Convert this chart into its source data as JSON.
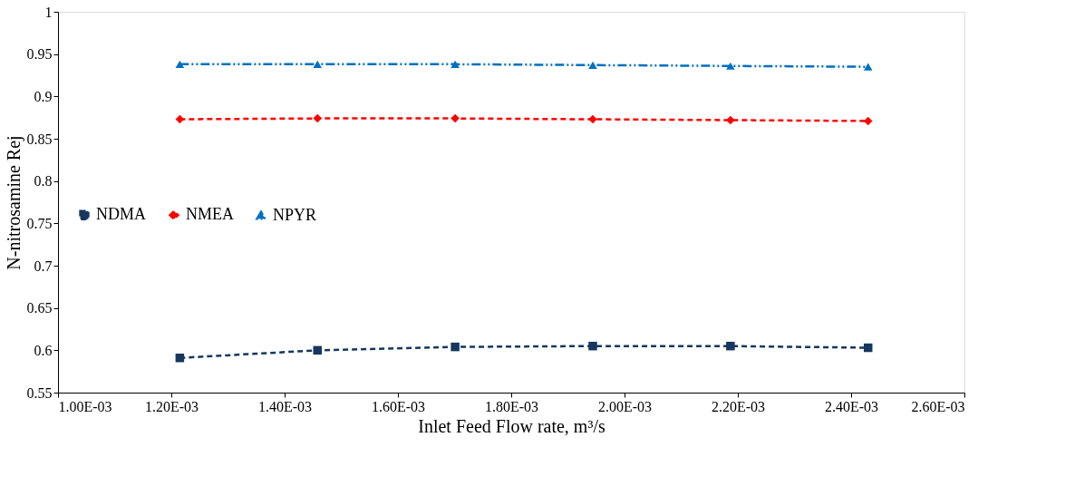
{
  "chart_data": {
    "type": "line",
    "xlabel": "Inlet Feed Flow rate, m³/s",
    "ylabel": "N-nitrosamine Rej",
    "x": [
      0.001215,
      0.001458,
      0.001701,
      0.001944,
      0.002187,
      0.00243
    ],
    "series": [
      {
        "name": "NDMA",
        "color": "#17375e",
        "marker": "square",
        "line_style": "dashed",
        "values": [
          0.591,
          0.6,
          0.604,
          0.605,
          0.605,
          0.603
        ]
      },
      {
        "name": "NMEA",
        "color": "#ff0000",
        "marker": "diamond",
        "line_style": "dashed",
        "values": [
          0.873,
          0.874,
          0.874,
          0.873,
          0.872,
          0.871
        ]
      },
      {
        "name": "NPYR",
        "color": "#0070c0",
        "marker": "triangle",
        "line_style": "dotted",
        "values": [
          0.938,
          0.938,
          0.938,
          0.937,
          0.936,
          0.935
        ]
      }
    ],
    "xlim": [
      0.001,
      0.0026
    ],
    "xticks": [
      {
        "value": 0.001,
        "label": "1.00E-03"
      },
      {
        "value": 0.0012,
        "label": "1.20E-03"
      },
      {
        "value": 0.0014,
        "label": "1.40E-03"
      },
      {
        "value": 0.0016,
        "label": "1.60E-03"
      },
      {
        "value": 0.0018,
        "label": "1.80E-03"
      },
      {
        "value": 0.002,
        "label": "2.00E-03"
      },
      {
        "value": 0.0022,
        "label": "2.20E-03"
      },
      {
        "value": 0.0024,
        "label": "2.40E-03"
      },
      {
        "value": 0.0026,
        "label": "2.60E-03"
      }
    ],
    "ylim": [
      0.55,
      1
    ],
    "yticks": [
      0.55,
      0.6,
      0.65,
      0.7,
      0.75,
      0.8,
      0.85,
      0.9,
      0.95,
      {
        "value": 1,
        "label": "1"
      }
    ],
    "grid": false,
    "legend": "left"
  }
}
